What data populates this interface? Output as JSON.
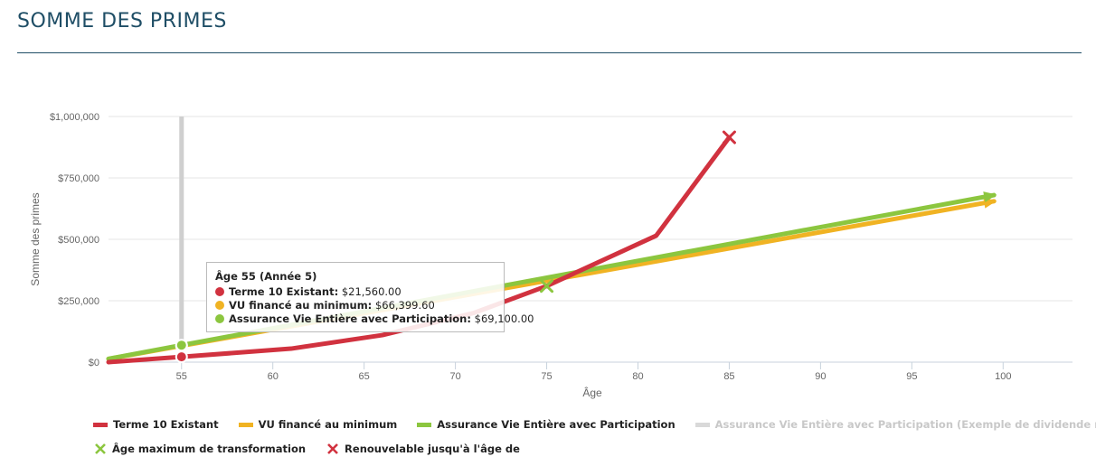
{
  "page": {
    "title": "SOMME DES PRIMES"
  },
  "chart_data": {
    "type": "line",
    "xlabel": "Âge",
    "ylabel": "Somme des primes",
    "xlim": [
      51,
      103.8
    ],
    "ylim": [
      0,
      1000000
    ],
    "x_ticks": [
      55,
      60,
      65,
      70,
      75,
      80,
      85,
      90,
      95,
      100
    ],
    "y_ticks": [
      {
        "value": 0,
        "label": "$0"
      },
      {
        "value": 250000,
        "label": "$250,000"
      },
      {
        "value": 500000,
        "label": "$500,000"
      },
      {
        "value": 750000,
        "label": "$750,000"
      },
      {
        "value": 1000000,
        "label": "$1,000,000"
      }
    ],
    "grid": true,
    "series": [
      {
        "name": "Terme 10 Existant",
        "color": "#d1323f",
        "points": [
          [
            51,
            0
          ],
          [
            55,
            21560
          ],
          [
            61,
            55000
          ],
          [
            66,
            110000
          ],
          [
            71,
            200000
          ],
          [
            75,
            310000
          ],
          [
            81,
            515000
          ],
          [
            85,
            915000
          ]
        ],
        "end_marker": "x"
      },
      {
        "name": "VU financé au minimum",
        "color": "#f0b323",
        "points": [
          [
            51,
            13000
          ],
          [
            55,
            66399.6
          ],
          [
            99.5,
            655000
          ]
        ],
        "end_marker": "arrow"
      },
      {
        "name": "Assurance Vie Entière avec Participation",
        "color": "#8cc63f",
        "points": [
          [
            51,
            13500
          ],
          [
            55,
            69100
          ],
          [
            99.5,
            680000
          ]
        ],
        "end_marker": "arrow"
      }
    ],
    "markers": [
      {
        "name": "Âge maximum de transformation",
        "x": 75,
        "y": 310000,
        "color": "#8cc63f"
      },
      {
        "name": "Renouvelable jusqu'à l'âge de",
        "x": 85,
        "y": 915000,
        "color": "#d1323f"
      }
    ],
    "hover_x": 55,
    "legend_position": "bottom-left"
  },
  "tooltip": {
    "title": "Âge 55 (Année 5)",
    "rows": [
      {
        "name": "Terme 10 Existant:",
        "value": "$21,560.00",
        "color": "#d1323f"
      },
      {
        "name": "VU financé au minimum:",
        "value": "$66,399.60",
        "color": "#f0b323"
      },
      {
        "name": "Assurance Vie Entière avec Participation:",
        "value": "$69,100.00",
        "color": "#8cc63f"
      }
    ]
  },
  "legend": {
    "items": [
      {
        "label": "Terme 10 Existant",
        "color": "#d1323f"
      },
      {
        "label": "VU financé au minimum",
        "color": "#f0b323"
      },
      {
        "label": "Assurance Vie Entière avec Participation",
        "color": "#8cc63f"
      },
      {
        "label": "Assurance Vie Entière avec Participation (Exemple de dividende réduit)",
        "color": "#d9d9d9"
      }
    ],
    "marker_items": [
      {
        "label": "Âge maximum de transformation",
        "color": "#8cc63f"
      },
      {
        "label": "Renouvelable jusqu'à l'âge de",
        "color": "#d1323f"
      }
    ]
  }
}
